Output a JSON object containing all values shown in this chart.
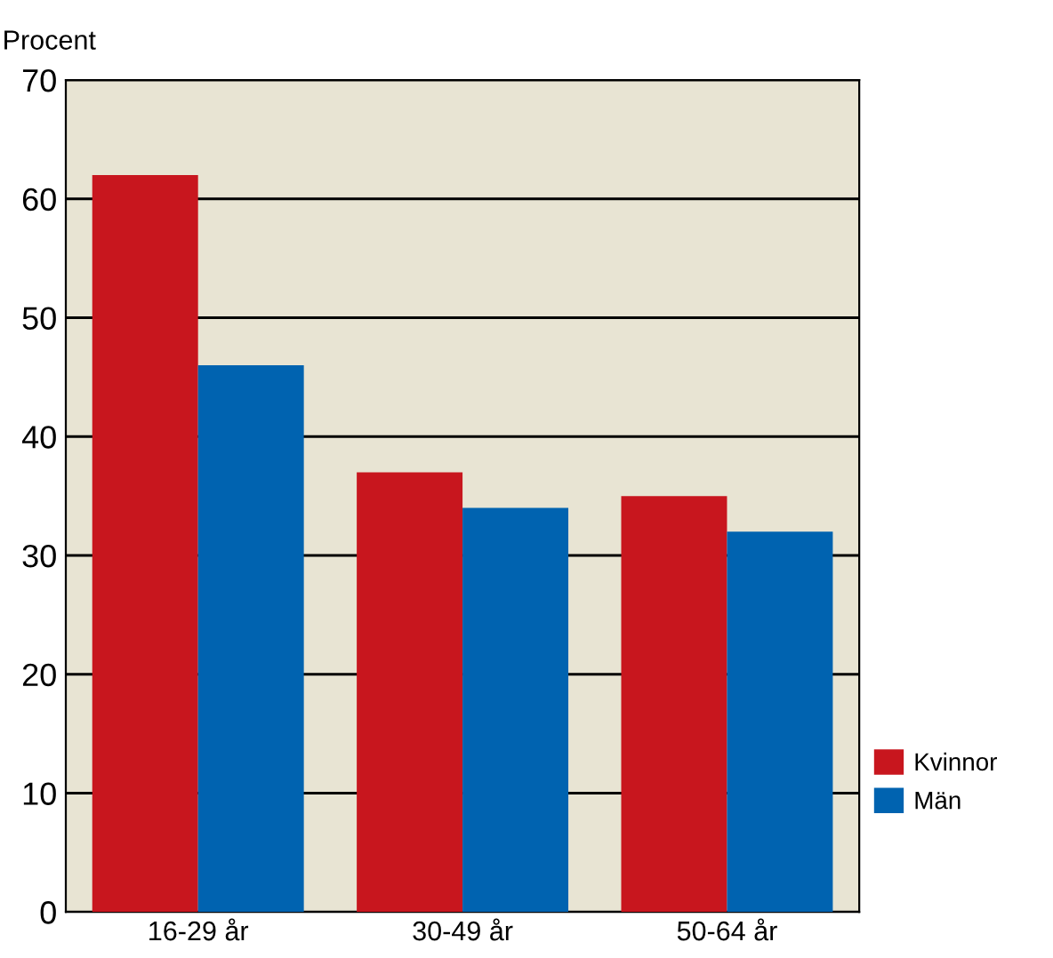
{
  "chart_data": {
    "type": "bar",
    "ylabel": "Procent",
    "categories": [
      "16-29 år",
      "30-49 år",
      "50-64 år"
    ],
    "series": [
      {
        "name": "Kvinnor",
        "color": "#c8161e",
        "values": [
          62,
          37,
          35
        ]
      },
      {
        "name": "Män",
        "color": "#0063b0",
        "values": [
          46,
          34,
          32
        ]
      }
    ],
    "ylim": [
      0,
      70
    ],
    "yticks": [
      0,
      10,
      20,
      30,
      40,
      50,
      60,
      70
    ],
    "grid": "y",
    "legend": "right"
  }
}
